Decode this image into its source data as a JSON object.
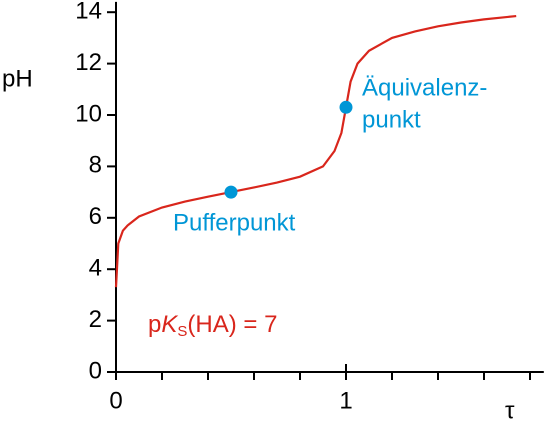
{
  "chart_data": {
    "type": "line",
    "xlabel": "τ",
    "ylabel": "pH",
    "xlim": [
      0,
      1.86
    ],
    "ylim": [
      0,
      14.4
    ],
    "xticks": [
      0,
      1
    ],
    "xminorticks": [
      0.2,
      0.4,
      0.6,
      0.8,
      1.2,
      1.4,
      1.6,
      1.8
    ],
    "yticks": [
      0,
      2,
      4,
      6,
      8,
      10,
      12,
      14
    ],
    "series": [
      {
        "color": "#d9261c",
        "x": [
          0,
          0.01,
          0.03,
          0.05,
          0.1,
          0.2,
          0.3,
          0.4,
          0.5,
          0.6,
          0.7,
          0.8,
          0.9,
          0.95,
          0.98,
          1.0,
          1.02,
          1.05,
          1.1,
          1.2,
          1.3,
          1.4,
          1.5,
          1.6,
          1.74
        ],
        "values": [
          3.3,
          5.0,
          5.5,
          5.7,
          6.05,
          6.4,
          6.63,
          6.82,
          7.0,
          7.18,
          7.37,
          7.6,
          8.0,
          8.6,
          9.3,
          10.3,
          11.3,
          12.0,
          12.5,
          13.0,
          13.25,
          13.45,
          13.6,
          13.72,
          13.85
        ]
      }
    ],
    "points": [
      {
        "label": [
          "Pufferpunkt"
        ],
        "x": 0.5,
        "y": 7.0
      },
      {
        "label": [
          "Äquivalenz-",
          "punkt"
        ],
        "x": 1.0,
        "y": 10.3
      }
    ],
    "point_color": "#0096d6",
    "annotation": {
      "parts": [
        "p",
        "K",
        "S",
        "(HA) = 7"
      ],
      "color": "#d9261c"
    }
  }
}
